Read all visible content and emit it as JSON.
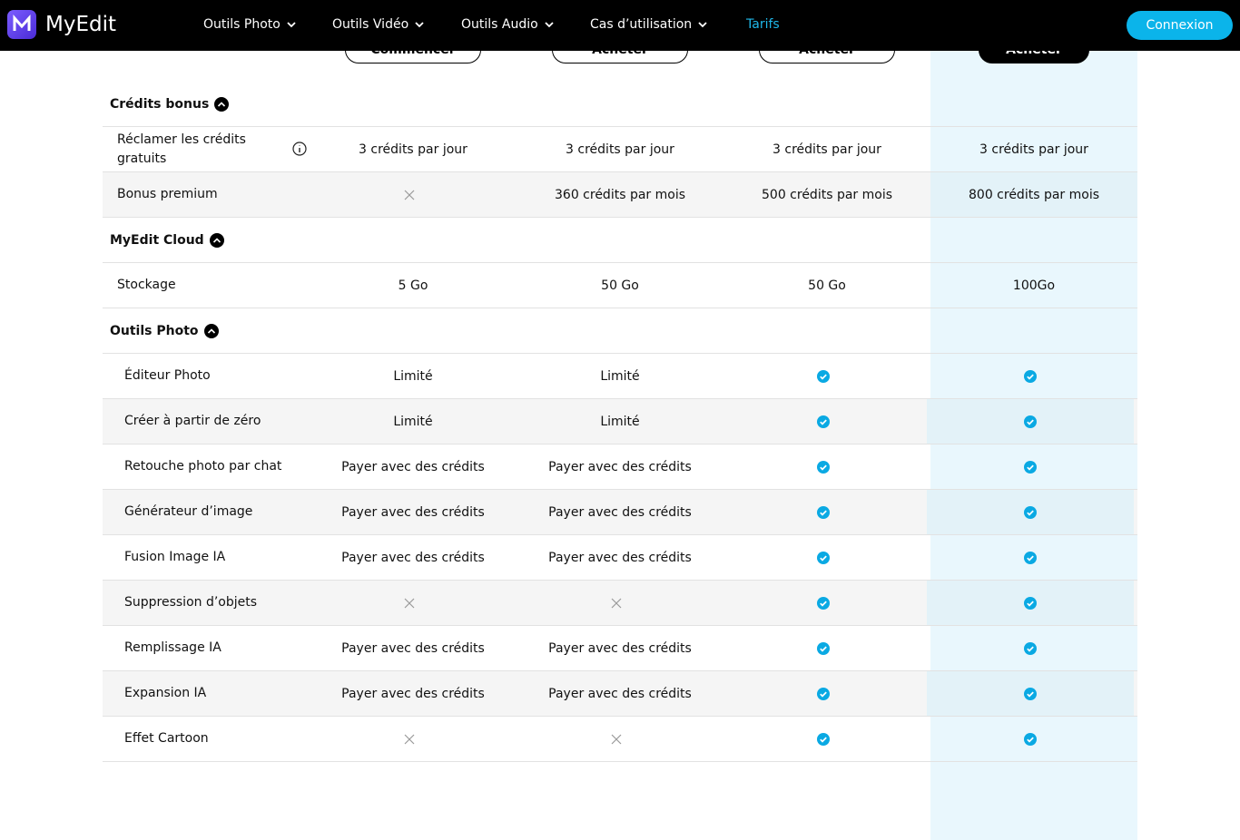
{
  "nav": {
    "brand": "MyEdit",
    "menu": [
      "Outils Photo",
      "Outils Vidéo",
      "Outils Audio",
      "Cas d’utilisation",
      "Tarifs"
    ],
    "login": "Connexion"
  },
  "plans": {
    "buttons": [
      "Commencer",
      "Acheter",
      "Acheter",
      "Acheter"
    ]
  },
  "sections": [
    {
      "title": "Crédits bonus",
      "rows": [
        {
          "label": "Réclamer les crédits gratuits",
          "info": true,
          "cells": [
            "3 crédits par jour",
            "3 crédits par jour",
            "3 crédits par jour",
            "3 crédits par jour"
          ]
        },
        {
          "label": "Bonus premium",
          "cells": [
            false,
            "360 crédits par mois",
            "500 crédits par mois",
            "800 crédits par mois"
          ]
        }
      ]
    },
    {
      "title": "MyEdit Cloud",
      "rows": [
        {
          "label": "Stockage",
          "cells": [
            "5 Go",
            "50 Go",
            "50 Go",
            "100Go"
          ]
        }
      ]
    },
    {
      "title": "Outils Photo",
      "rows": [
        {
          "label": "Éditeur Photo",
          "cells": [
            "Limité",
            "Limité",
            true,
            true
          ]
        },
        {
          "label": "Créer à partir de zéro",
          "cells": [
            "Limité",
            "Limité",
            true,
            true
          ]
        },
        {
          "label": "Retouche photo par chat",
          "cells": [
            "Payer avec des crédits",
            "Payer avec des crédits",
            true,
            true
          ]
        },
        {
          "label": "Générateur d’image",
          "cells": [
            "Payer avec des crédits",
            "Payer avec des crédits",
            true,
            true
          ]
        },
        {
          "label": "Fusion Image IA",
          "cells": [
            "Payer avec des crédits",
            "Payer avec des crédits",
            true,
            true
          ]
        },
        {
          "label": "Suppression d’objets",
          "cells": [
            false,
            false,
            true,
            true
          ]
        },
        {
          "label": "Remplissage IA",
          "cells": [
            "Payer avec des crédits",
            "Payer avec des crédits",
            true,
            true
          ]
        },
        {
          "label": "Expansion IA",
          "cells": [
            "Payer avec des crédits",
            "Payer avec des crédits",
            true,
            true
          ]
        },
        {
          "label": "Effet Cartoon",
          "cells": [
            false,
            false,
            true,
            true
          ]
        }
      ]
    }
  ]
}
